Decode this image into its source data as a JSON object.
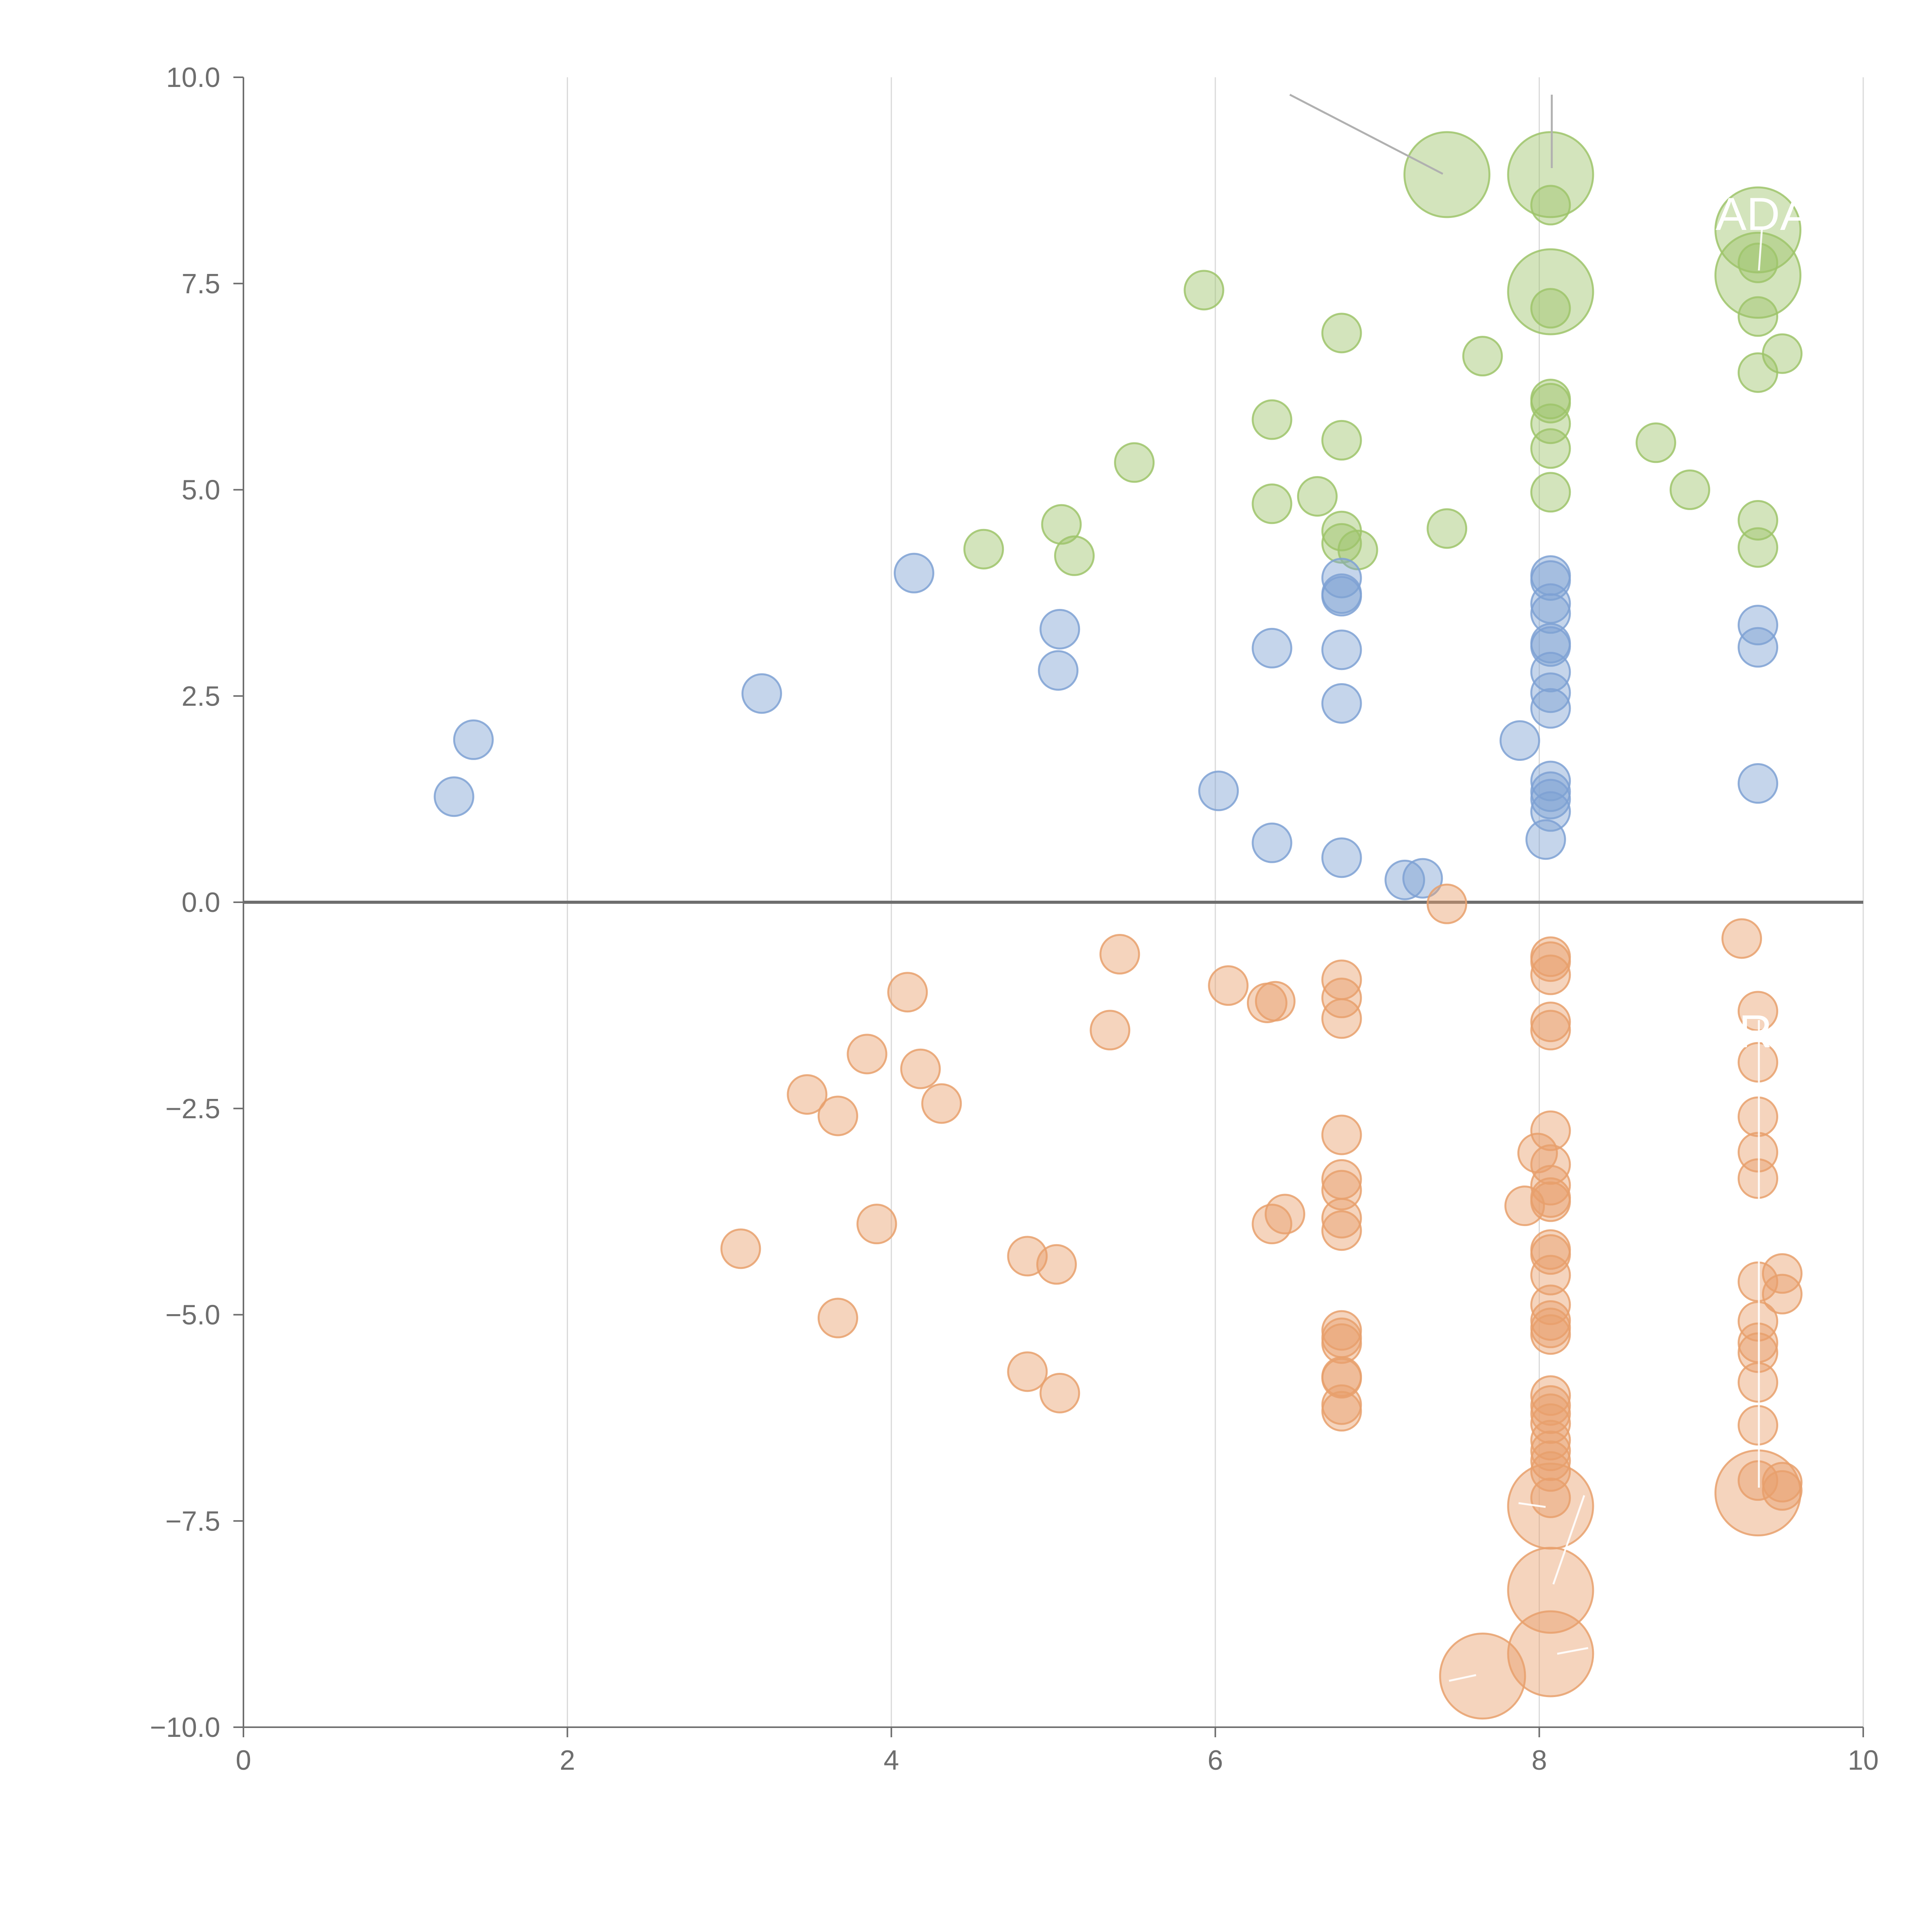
{
  "chart_data": {
    "type": "scatter",
    "title": "",
    "xlabel": "",
    "ylabel": "",
    "xlim": [
      0,
      10
    ],
    "ylim": [
      -10,
      10
    ],
    "x_ticks": [
      "0",
      "2",
      "4",
      "6",
      "8",
      "10"
    ],
    "y_ticks": [
      "10.0",
      "7.5",
      "5.0",
      "2.5",
      "0.0",
      "−2.5",
      "−5.0",
      "−7.5",
      "−10.0"
    ],
    "x_tick_values": [
      0,
      2,
      4,
      6,
      8,
      10
    ],
    "y_tick_values": [
      10,
      7.5,
      5,
      2.5,
      0,
      -2.5,
      -5,
      -7.5,
      -10
    ],
    "grid": "vertical",
    "zero_line": true,
    "partial_labels": [
      "ADA",
      "R"
    ],
    "series": [
      {
        "name": "green",
        "color": "#9dc46a",
        "points": [
          [
            7.43,
            8.82,
            2.2
          ],
          [
            8.07,
            8.82,
            2.2
          ],
          [
            9.35,
            8.15,
            2.2
          ],
          [
            9.35,
            7.6,
            2.2
          ],
          [
            8.07,
            7.4,
            2.2
          ],
          [
            8.07,
            8.45,
            1
          ],
          [
            9.35,
            7.75,
            1
          ],
          [
            9.35,
            7.1,
            1
          ],
          [
            9.5,
            6.65,
            1
          ],
          [
            9.35,
            6.42,
            1
          ],
          [
            5.93,
            7.42,
            1
          ],
          [
            6.78,
            6.9,
            1
          ],
          [
            7.65,
            6.62,
            1
          ],
          [
            8.07,
            7.2,
            1
          ],
          [
            8.07,
            6.1,
            1
          ],
          [
            8.07,
            6.05,
            1
          ],
          [
            8.07,
            5.8,
            1
          ],
          [
            8.07,
            5.5,
            1
          ],
          [
            8.07,
            4.97,
            1
          ],
          [
            6.35,
            5.85,
            1
          ],
          [
            6.78,
            5.6,
            1
          ],
          [
            8.72,
            5.57,
            1
          ],
          [
            8.93,
            5.0,
            1
          ],
          [
            5.5,
            5.33,
            1
          ],
          [
            6.35,
            4.83,
            1
          ],
          [
            6.63,
            4.92,
            1
          ],
          [
            7.43,
            4.53,
            1
          ],
          [
            6.78,
            4.5,
            1
          ],
          [
            6.78,
            4.35,
            1
          ],
          [
            6.88,
            4.27,
            1
          ],
          [
            5.05,
            4.58,
            1
          ],
          [
            5.13,
            4.2,
            1
          ],
          [
            4.57,
            4.28,
            1
          ],
          [
            9.35,
            4.63,
            1
          ],
          [
            9.35,
            4.3,
            1
          ]
        ]
      },
      {
        "name": "blue",
        "color": "#7ea1d3",
        "points": [
          [
            1.42,
            1.97,
            1
          ],
          [
            1.3,
            1.28,
            1
          ],
          [
            3.2,
            2.53,
            1
          ],
          [
            4.14,
            3.99,
            1
          ],
          [
            5.04,
            3.31,
            1
          ],
          [
            5.03,
            2.81,
            1
          ],
          [
            6.02,
            1.35,
            1
          ],
          [
            6.35,
            3.08,
            1
          ],
          [
            6.35,
            0.72,
            1
          ],
          [
            6.78,
            3.93,
            1
          ],
          [
            6.78,
            3.74,
            1
          ],
          [
            6.78,
            3.71,
            1
          ],
          [
            6.78,
            3.06,
            1
          ],
          [
            6.78,
            2.41,
            1
          ],
          [
            6.78,
            0.54,
            1
          ],
          [
            7.17,
            0.27,
            1
          ],
          [
            7.28,
            0.29,
            1
          ],
          [
            7.88,
            1.96,
            1
          ],
          [
            8.07,
            3.96,
            1
          ],
          [
            8.07,
            3.9,
            1
          ],
          [
            8.07,
            3.62,
            1
          ],
          [
            8.07,
            3.5,
            1
          ],
          [
            8.07,
            3.14,
            1
          ],
          [
            8.07,
            3.1,
            1
          ],
          [
            8.07,
            2.79,
            1
          ],
          [
            8.07,
            2.54,
            1
          ],
          [
            8.07,
            2.35,
            1
          ],
          [
            8.07,
            1.47,
            1
          ],
          [
            8.07,
            1.34,
            1
          ],
          [
            8.07,
            1.25,
            1
          ],
          [
            8.07,
            1.1,
            1
          ],
          [
            8.04,
            0.76,
            1
          ],
          [
            9.35,
            3.36,
            1
          ],
          [
            9.35,
            3.09,
            1
          ],
          [
            9.35,
            1.44,
            1
          ]
        ]
      },
      {
        "name": "orange",
        "color": "#e8a06c",
        "points": [
          [
            7.43,
            -0.02,
            1
          ],
          [
            5.41,
            -0.63,
            1
          ],
          [
            4.1,
            -1.09,
            1
          ],
          [
            6.08,
            -1.01,
            1
          ],
          [
            6.32,
            -1.22,
            1
          ],
          [
            6.37,
            -1.2,
            1
          ],
          [
            5.35,
            -1.55,
            1
          ],
          [
            3.85,
            -1.84,
            1
          ],
          [
            4.18,
            -2.02,
            1
          ],
          [
            3.48,
            -2.33,
            1
          ],
          [
            3.67,
            -2.59,
            1
          ],
          [
            4.31,
            -2.44,
            1
          ],
          [
            6.78,
            -0.94,
            1
          ],
          [
            6.78,
            -1.16,
            1
          ],
          [
            6.78,
            -1.41,
            1
          ],
          [
            6.78,
            -2.82,
            1
          ],
          [
            6.78,
            -3.36,
            1
          ],
          [
            6.78,
            -3.49,
            1
          ],
          [
            6.78,
            -3.83,
            1
          ],
          [
            6.78,
            -3.98,
            1
          ],
          [
            6.43,
            -3.78,
            1
          ],
          [
            6.35,
            -3.9,
            1
          ],
          [
            3.07,
            -4.2,
            1
          ],
          [
            3.91,
            -3.9,
            1
          ],
          [
            4.84,
            -4.29,
            1
          ],
          [
            5.02,
            -4.39,
            1
          ],
          [
            3.67,
            -5.04,
            1
          ],
          [
            4.84,
            -5.69,
            1
          ],
          [
            5.04,
            -5.95,
            1
          ],
          [
            6.78,
            -5.19,
            1
          ],
          [
            6.78,
            -5.28,
            1
          ],
          [
            6.78,
            -5.35,
            1
          ],
          [
            6.78,
            -5.75,
            1
          ],
          [
            6.78,
            -5.77,
            1
          ],
          [
            6.78,
            -6.09,
            1
          ],
          [
            6.78,
            -6.17,
            1
          ],
          [
            8.07,
            -0.66,
            1
          ],
          [
            8.07,
            -0.72,
            1
          ],
          [
            8.07,
            -0.88,
            1
          ],
          [
            8.07,
            -1.45,
            1
          ],
          [
            8.07,
            -1.55,
            1
          ],
          [
            8.07,
            -2.77,
            1
          ],
          [
            7.99,
            -3.04,
            1
          ],
          [
            8.07,
            -3.18,
            1
          ],
          [
            8.07,
            -3.43,
            1
          ],
          [
            8.07,
            -3.58,
            1
          ],
          [
            8.07,
            -3.63,
            1
          ],
          [
            7.91,
            -3.68,
            1
          ],
          [
            8.07,
            -4.21,
            1
          ],
          [
            8.07,
            -4.27,
            1
          ],
          [
            8.07,
            -4.52,
            1
          ],
          [
            8.07,
            -4.88,
            1
          ],
          [
            8.07,
            -5.07,
            1
          ],
          [
            8.07,
            -5.16,
            1
          ],
          [
            8.07,
            -5.24,
            1
          ],
          [
            8.07,
            -5.98,
            1
          ],
          [
            8.07,
            -6.1,
            1
          ],
          [
            8.07,
            -6.2,
            1
          ],
          [
            8.07,
            -6.32,
            1
          ],
          [
            8.07,
            -6.52,
            1
          ],
          [
            8.07,
            -6.65,
            1
          ],
          [
            8.07,
            -6.77,
            1
          ],
          [
            8.07,
            -6.9,
            1
          ],
          [
            8.07,
            -7.22,
            1
          ],
          [
            9.25,
            -0.44,
            1
          ],
          [
            9.35,
            -1.32,
            1
          ],
          [
            9.35,
            -1.94,
            1
          ],
          [
            9.35,
            -2.6,
            1
          ],
          [
            9.35,
            -3.03,
            1
          ],
          [
            9.35,
            -3.35,
            1
          ],
          [
            9.35,
            -4.6,
            1
          ],
          [
            9.5,
            -4.5,
            1
          ],
          [
            9.5,
            -4.75,
            1
          ],
          [
            9.35,
            -5.08,
            1
          ],
          [
            9.35,
            -5.34,
            1
          ],
          [
            9.35,
            -5.46,
            1
          ],
          [
            9.35,
            -5.82,
            1
          ],
          [
            9.35,
            -6.34,
            1
          ],
          [
            9.35,
            -7.01,
            1
          ],
          [
            9.5,
            -7.03,
            1
          ],
          [
            9.5,
            -7.13,
            1
          ],
          [
            9.35,
            -7.16,
            2.2
          ],
          [
            8.07,
            -7.32,
            2.2
          ],
          [
            8.07,
            -8.34,
            2.2
          ],
          [
            8.07,
            -9.11,
            2.2
          ],
          [
            7.65,
            -9.38,
            2.2
          ]
        ]
      }
    ]
  }
}
